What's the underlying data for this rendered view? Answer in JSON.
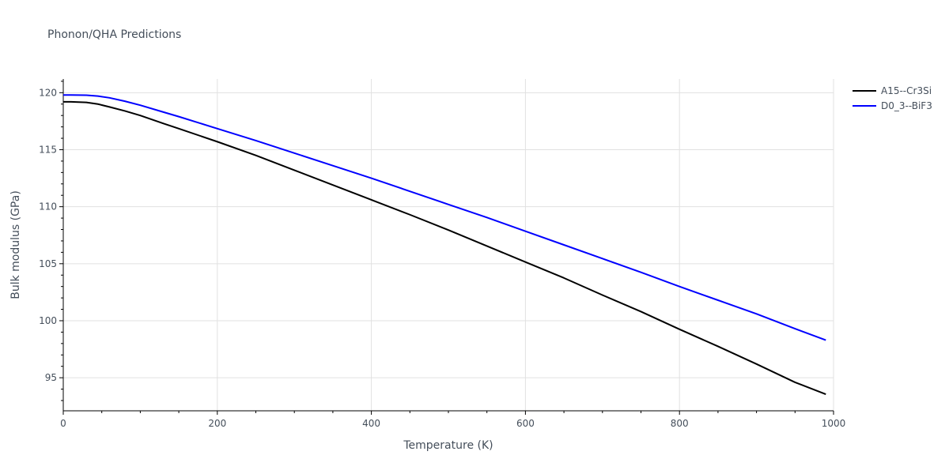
{
  "chart_data": {
    "type": "line",
    "title": "Phonon/QHA Predictions",
    "xlabel": "Temperature (K)",
    "ylabel": "Bulk modulus (GPa)",
    "xlim": [
      0,
      1000
    ],
    "ylim": [
      92.1,
      121.2
    ],
    "xticks": [
      0,
      200,
      400,
      600,
      800,
      1000
    ],
    "xtick_labels": [
      "0",
      "200",
      "400",
      "600",
      "800",
      "1000"
    ],
    "yticks": [
      95,
      100,
      105,
      110,
      115,
      120
    ],
    "ytick_labels": [
      "95",
      "100",
      "105",
      "110",
      "115",
      "120"
    ],
    "x_minor_step": 50,
    "y_minor_step": 1,
    "grid": true,
    "legend_position": "top-right",
    "series": [
      {
        "name": "A15--Cr3Si",
        "color": "#000000",
        "x": [
          0,
          10,
          30,
          45,
          60,
          80,
          100,
          130,
          150,
          200,
          250,
          300,
          350,
          400,
          450,
          500,
          550,
          600,
          650,
          700,
          750,
          800,
          850,
          900,
          950,
          990
        ],
        "y": [
          119.2,
          119.2,
          119.15,
          119.0,
          118.75,
          118.4,
          118.0,
          117.3,
          116.85,
          115.7,
          114.5,
          113.2,
          111.9,
          110.6,
          109.3,
          107.95,
          106.55,
          105.15,
          103.75,
          102.25,
          100.8,
          99.25,
          97.75,
          96.2,
          94.6,
          93.55
        ]
      },
      {
        "name": "D0_3--BiF3",
        "color": "#0000ff",
        "x": [
          0,
          10,
          30,
          45,
          60,
          80,
          100,
          130,
          150,
          200,
          250,
          300,
          350,
          400,
          450,
          500,
          550,
          600,
          650,
          700,
          750,
          800,
          850,
          900,
          950,
          990
        ],
        "y": [
          119.8,
          119.8,
          119.78,
          119.7,
          119.55,
          119.25,
          118.9,
          118.3,
          117.9,
          116.85,
          115.8,
          114.7,
          113.6,
          112.5,
          111.35,
          110.2,
          109.05,
          107.85,
          106.65,
          105.45,
          104.25,
          103.0,
          101.8,
          100.6,
          99.3,
          98.3
        ]
      }
    ]
  }
}
